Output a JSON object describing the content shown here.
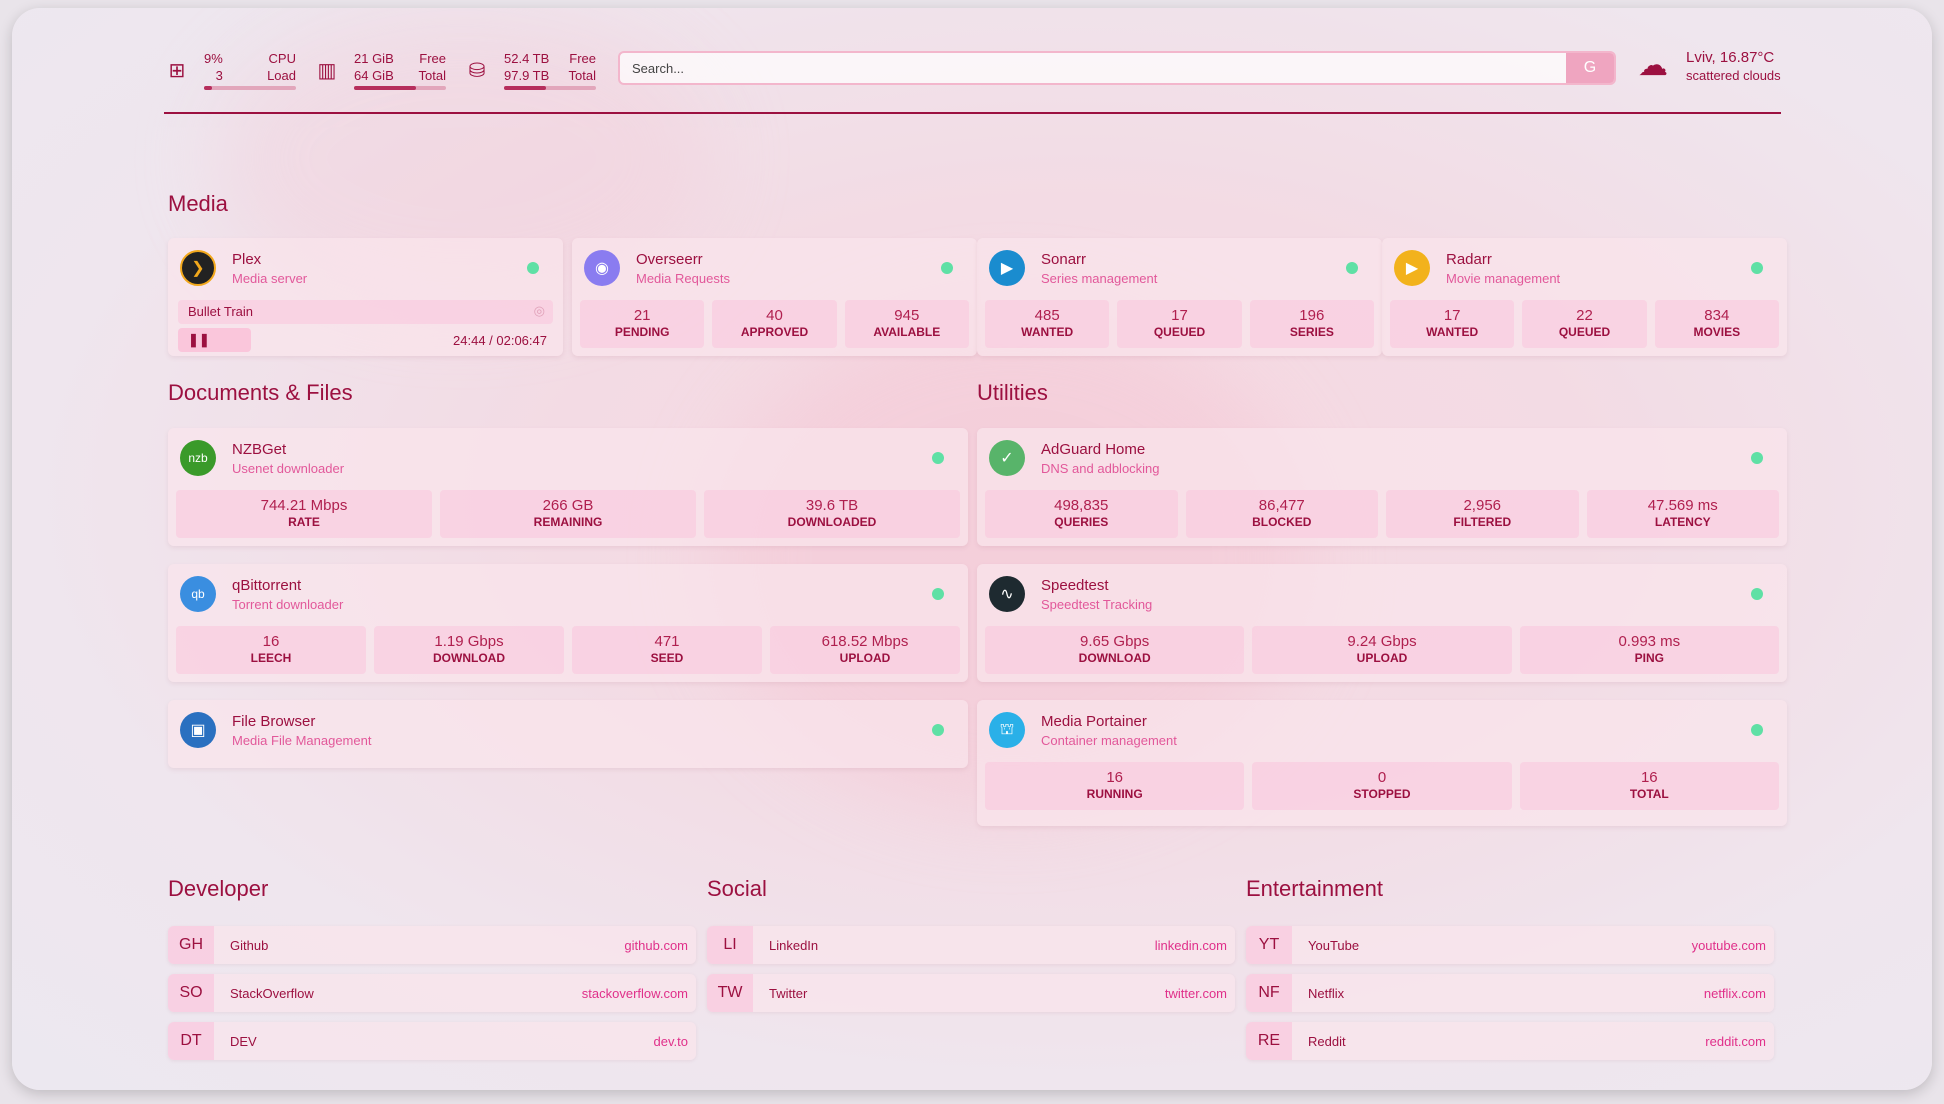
{
  "header": {
    "cpu": {
      "icon": "cpu-icon",
      "value": "9%",
      "sub": "3",
      "label1": "CPU",
      "label2": "Load",
      "usage": 0.09
    },
    "memory": {
      "icon": "memory-icon",
      "value": "21 GiB",
      "sub": "64 GiB",
      "label1": "Free",
      "label2": "Total",
      "usage": 0.67
    },
    "disk": {
      "icon": "disk-icon",
      "value": "52.4 TB",
      "sub": "97.9 TB",
      "label1": "Free",
      "label2": "Total",
      "usage": 0.46
    },
    "search": {
      "placeholder": "Search...",
      "button": "G"
    },
    "weather": {
      "icon": "cloud-sun-icon",
      "title": "Lviv, 16.87°C",
      "desc": "scattered clouds"
    }
  },
  "sections": {
    "media": "Media",
    "documents": "Documents & Files",
    "utilities": "Utilities",
    "developer": "Developer",
    "social": "Social",
    "entertainment": "Entertainment"
  },
  "plex": {
    "name": "Plex",
    "desc": "Media server",
    "now_playing": "Bullet Train",
    "time": "24:44 / 02:06:47",
    "progress": 0.195,
    "status_color": "#5fe0a5"
  },
  "services": [
    {
      "id": "overseerr",
      "name": "Overseerr",
      "desc": "Media Requests",
      "logo": "#8a7cf0",
      "glyph": "◉",
      "stats": [
        [
          "21",
          "PENDING"
        ],
        [
          "40",
          "APPROVED"
        ],
        [
          "945",
          "AVAILABLE"
        ]
      ]
    },
    {
      "id": "sonarr",
      "name": "Sonarr",
      "desc": "Series management",
      "logo": "#1a8ccf",
      "glyph": "▶",
      "stats": [
        [
          "485",
          "WANTED"
        ],
        [
          "17",
          "QUEUED"
        ],
        [
          "196",
          "SERIES"
        ]
      ]
    },
    {
      "id": "radarr",
      "name": "Radarr",
      "desc": "Movie management",
      "logo": "#f2b21c",
      "glyph": "▶",
      "stats": [
        [
          "17",
          "WANTED"
        ],
        [
          "22",
          "QUEUED"
        ],
        [
          "834",
          "MOVIES"
        ]
      ]
    },
    {
      "id": "nzbget",
      "name": "NZBGet",
      "desc": "Usenet downloader",
      "logo": "#3a9a2a",
      "glyph": "nzb",
      "stats": [
        [
          "744.21 Mbps",
          "RATE"
        ],
        [
          "266 GB",
          "REMAINING"
        ],
        [
          "39.6 TB",
          "DOWNLOADED"
        ]
      ]
    },
    {
      "id": "qbittorrent",
      "name": "qBittorrent",
      "desc": "Torrent downloader",
      "logo": "#3a8ee0",
      "glyph": "qb",
      "stats": [
        [
          "16",
          "LEECH"
        ],
        [
          "1.19 Gbps",
          "DOWNLOAD"
        ],
        [
          "471",
          "SEED"
        ],
        [
          "618.52 Mbps",
          "UPLOAD"
        ]
      ]
    },
    {
      "id": "filebrowser",
      "name": "File Browser",
      "desc": "Media File Management",
      "logo": "#2a70c0",
      "glyph": "▣",
      "stats": []
    },
    {
      "id": "adguard",
      "name": "AdGuard Home",
      "desc": "DNS and adblocking",
      "logo": "#58b46a",
      "glyph": "✓",
      "stats": [
        [
          "498,835",
          "QUERIES"
        ],
        [
          "86,477",
          "BLOCKED"
        ],
        [
          "2,956",
          "FILTERED"
        ],
        [
          "47.569 ms",
          "LATENCY"
        ]
      ]
    },
    {
      "id": "speedtest",
      "name": "Speedtest",
      "desc": "Speedtest Tracking",
      "logo": "#1e2a30",
      "glyph": "∿",
      "stats": [
        [
          "9.65 Gbps",
          "DOWNLOAD"
        ],
        [
          "9.24 Gbps",
          "UPLOAD"
        ],
        [
          "0.993 ms",
          "PING"
        ]
      ]
    },
    {
      "id": "portainer",
      "name": "Media Portainer",
      "desc": "Container management",
      "logo": "#2ab0e8",
      "glyph": "⛫",
      "stats": [
        [
          "16",
          "RUNNING"
        ],
        [
          "0",
          "STOPPED"
        ],
        [
          "16",
          "TOTAL"
        ]
      ]
    }
  ],
  "bookmarks": [
    [
      [
        "GH",
        "Github",
        "github.com"
      ],
      [
        "SO",
        "StackOverflow",
        "stackoverflow.com"
      ],
      [
        "DT",
        "DEV",
        "dev.to"
      ]
    ],
    [
      [
        "LI",
        "LinkedIn",
        "linkedin.com"
      ],
      [
        "TW",
        "Twitter",
        "twitter.com"
      ]
    ],
    [
      [
        "YT",
        "YouTube",
        "youtube.com"
      ],
      [
        "NF",
        "Netflix",
        "netflix.com"
      ],
      [
        "RE",
        "Reddit",
        "reddit.com"
      ]
    ]
  ],
  "colors": {
    "accent": "#9c1040",
    "status": "#5fe0a5",
    "link": "#e0308a"
  }
}
